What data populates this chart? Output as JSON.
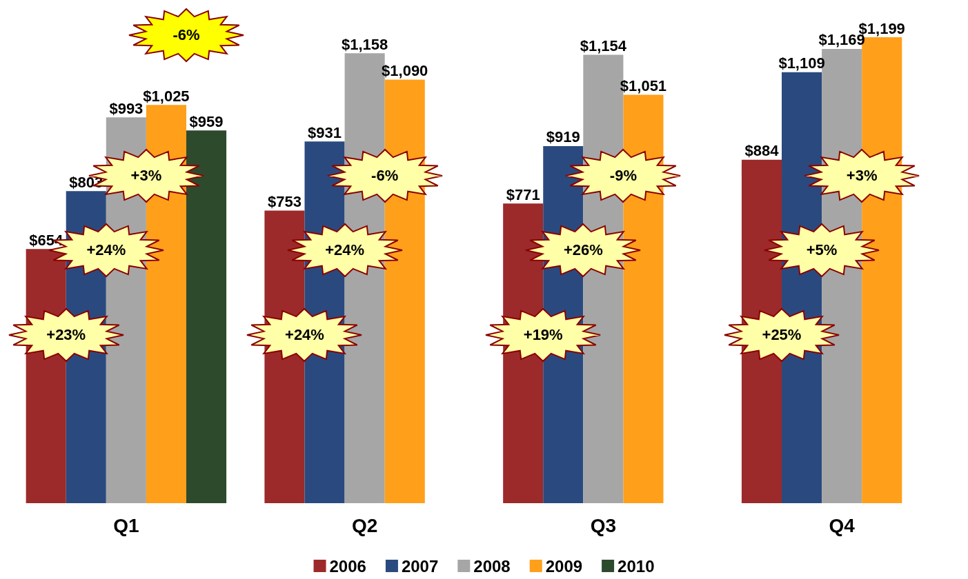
{
  "chart_data": {
    "type": "bar",
    "categories": [
      "Q1",
      "Q2",
      "Q3",
      "Q4"
    ],
    "series": [
      {
        "name": "2006",
        "color": "#9c2a2a",
        "values": [
          654,
          753,
          771,
          884
        ],
        "value_labels": [
          "$654",
          "$753",
          "$771",
          "$884"
        ]
      },
      {
        "name": "2007",
        "color": "#2a4a7f",
        "values": [
          803,
          931,
          919,
          1109
        ],
        "value_labels": [
          "$803",
          "$931",
          "$919",
          "$1,109"
        ]
      },
      {
        "name": "2008",
        "color": "#a6a6a6",
        "values": [
          993,
          1158,
          1154,
          1169
        ],
        "value_labels": [
          "$993",
          "$1,158",
          "$1,154",
          "$1,169"
        ]
      },
      {
        "name": "2009",
        "color": "#ff9f1a",
        "values": [
          1025,
          1090,
          1051,
          1199
        ],
        "value_labels": [
          "$1,025",
          "$1,090",
          "$1,051",
          "$1,199"
        ]
      },
      {
        "name": "2010",
        "color": "#2d4a2d",
        "values": [
          959,
          null,
          null,
          null
        ],
        "value_labels": [
          "$959",
          null,
          null,
          null
        ]
      }
    ],
    "legend": "bottom",
    "tick_labels": "x",
    "annotations": [
      "+23%",
      "+24%",
      "+3%",
      "-6%",
      "+24%",
      "+24%",
      "-6%",
      "+19%",
      "+26%",
      "-9%",
      "+25%",
      "+5%",
      "+3%"
    ]
  }
}
